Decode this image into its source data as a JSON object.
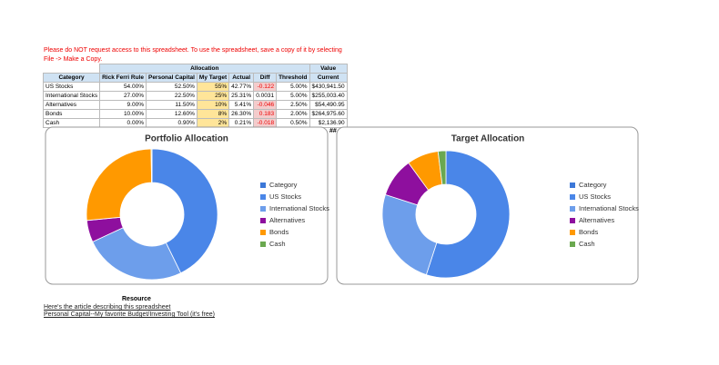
{
  "notice": [
    "Please do NOT request access to this spreadsheet. To use the spreadsheet, save a copy of it by selecting",
    "File -> Make a Copy."
  ],
  "table": {
    "group_headers": [
      "Allocation",
      "Value"
    ],
    "columns": [
      "Category",
      "Rick Ferri Rule",
      "Personal Capital",
      "My Target",
      "Actual",
      "Diff",
      "Threshold",
      "Current"
    ],
    "rows": [
      [
        "US Stocks",
        "54.00%",
        "52.50%",
        "55%",
        "42.77%",
        "-0.122",
        "5.00%",
        "$430,941.50"
      ],
      [
        "International Stocks",
        "27.00%",
        "22.50%",
        "25%",
        "25.31%",
        "0.0031",
        "5.00%",
        "$255,003.40"
      ],
      [
        "Alternatives",
        "9.00%",
        "11.50%",
        "10%",
        "5.41%",
        "-0.046",
        "2.50%",
        "$54,490.95"
      ],
      [
        "Bonds",
        "10.00%",
        "12.60%",
        "8%",
        "26.30%",
        "0.183",
        "2.00%",
        "$264,975.60"
      ],
      [
        "Cash",
        "0.00%",
        "0.90%",
        "2%",
        "0.21%",
        "-0.018",
        "0.50%",
        "$2,136.90"
      ]
    ],
    "overflow": "##"
  },
  "chart_data": [
    {
      "type": "donut",
      "title": "Portfolio Allocation",
      "categories": [
        "Category",
        "US Stocks",
        "International Stocks",
        "Alternatives",
        "Bonds",
        "Cash"
      ],
      "values": [
        null,
        42.77,
        25.31,
        5.41,
        26.3,
        0.21
      ],
      "colors": [
        "#3c78d8",
        "#4a86e8",
        "#6d9eeb",
        "#8e0f9e",
        "#ff9900",
        "#6aa84f"
      ]
    },
    {
      "type": "donut",
      "title": "Target Allocation",
      "categories": [
        "Category",
        "US Stocks",
        "International Stocks",
        "Alternatives",
        "Bonds",
        "Cash"
      ],
      "values": [
        null,
        55,
        25,
        10,
        8,
        2
      ],
      "colors": [
        "#3c78d8",
        "#4a86e8",
        "#6d9eeb",
        "#8e0f9e",
        "#ff9900",
        "#6aa84f"
      ]
    }
  ],
  "resources": {
    "title": "Resource",
    "links": [
      "Here's the article describing this spreadsheet",
      "Personal Capital--My favorite Budget/Investing Tool (it's free)"
    ]
  }
}
